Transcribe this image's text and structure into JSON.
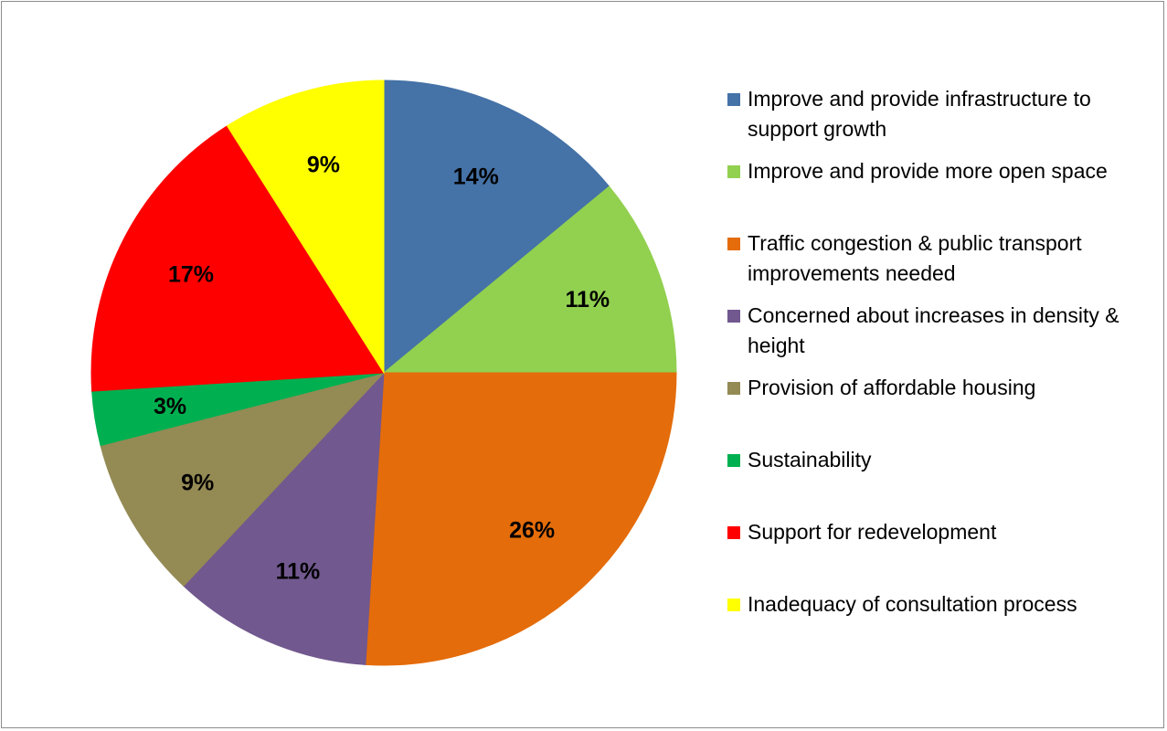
{
  "chart_data": {
    "type": "pie",
    "start_angle_deg": 0,
    "direction": "clockwise",
    "legend_position": "right",
    "slices": [
      {
        "label": "Improve and provide infrastructure to support growth",
        "value": 14,
        "display": "14%",
        "color": "#4572a7"
      },
      {
        "label": "Improve and provide more open space",
        "value": 11,
        "display": "11%",
        "color": "#92d050"
      },
      {
        "label": "Traffic congestion & public transport improvements needed",
        "value": 26,
        "display": "26%",
        "color": "#e46c0a"
      },
      {
        "label": "Concerned about increases in density & height",
        "value": 11,
        "display": "11%",
        "color": "#71588f"
      },
      {
        "label": "Provision of affordable housing",
        "value": 9,
        "display": "9%",
        "color": "#948a54"
      },
      {
        "label": "Sustainability",
        "value": 3,
        "display": "3%",
        "color": "#00b050"
      },
      {
        "label": "Support for redevelopment",
        "value": 17,
        "display": "17%",
        "color": "#ff0000"
      },
      {
        "label": "Inadequacy of consultation process",
        "value": 9,
        "display": "9%",
        "color": "#ffff00"
      }
    ]
  }
}
